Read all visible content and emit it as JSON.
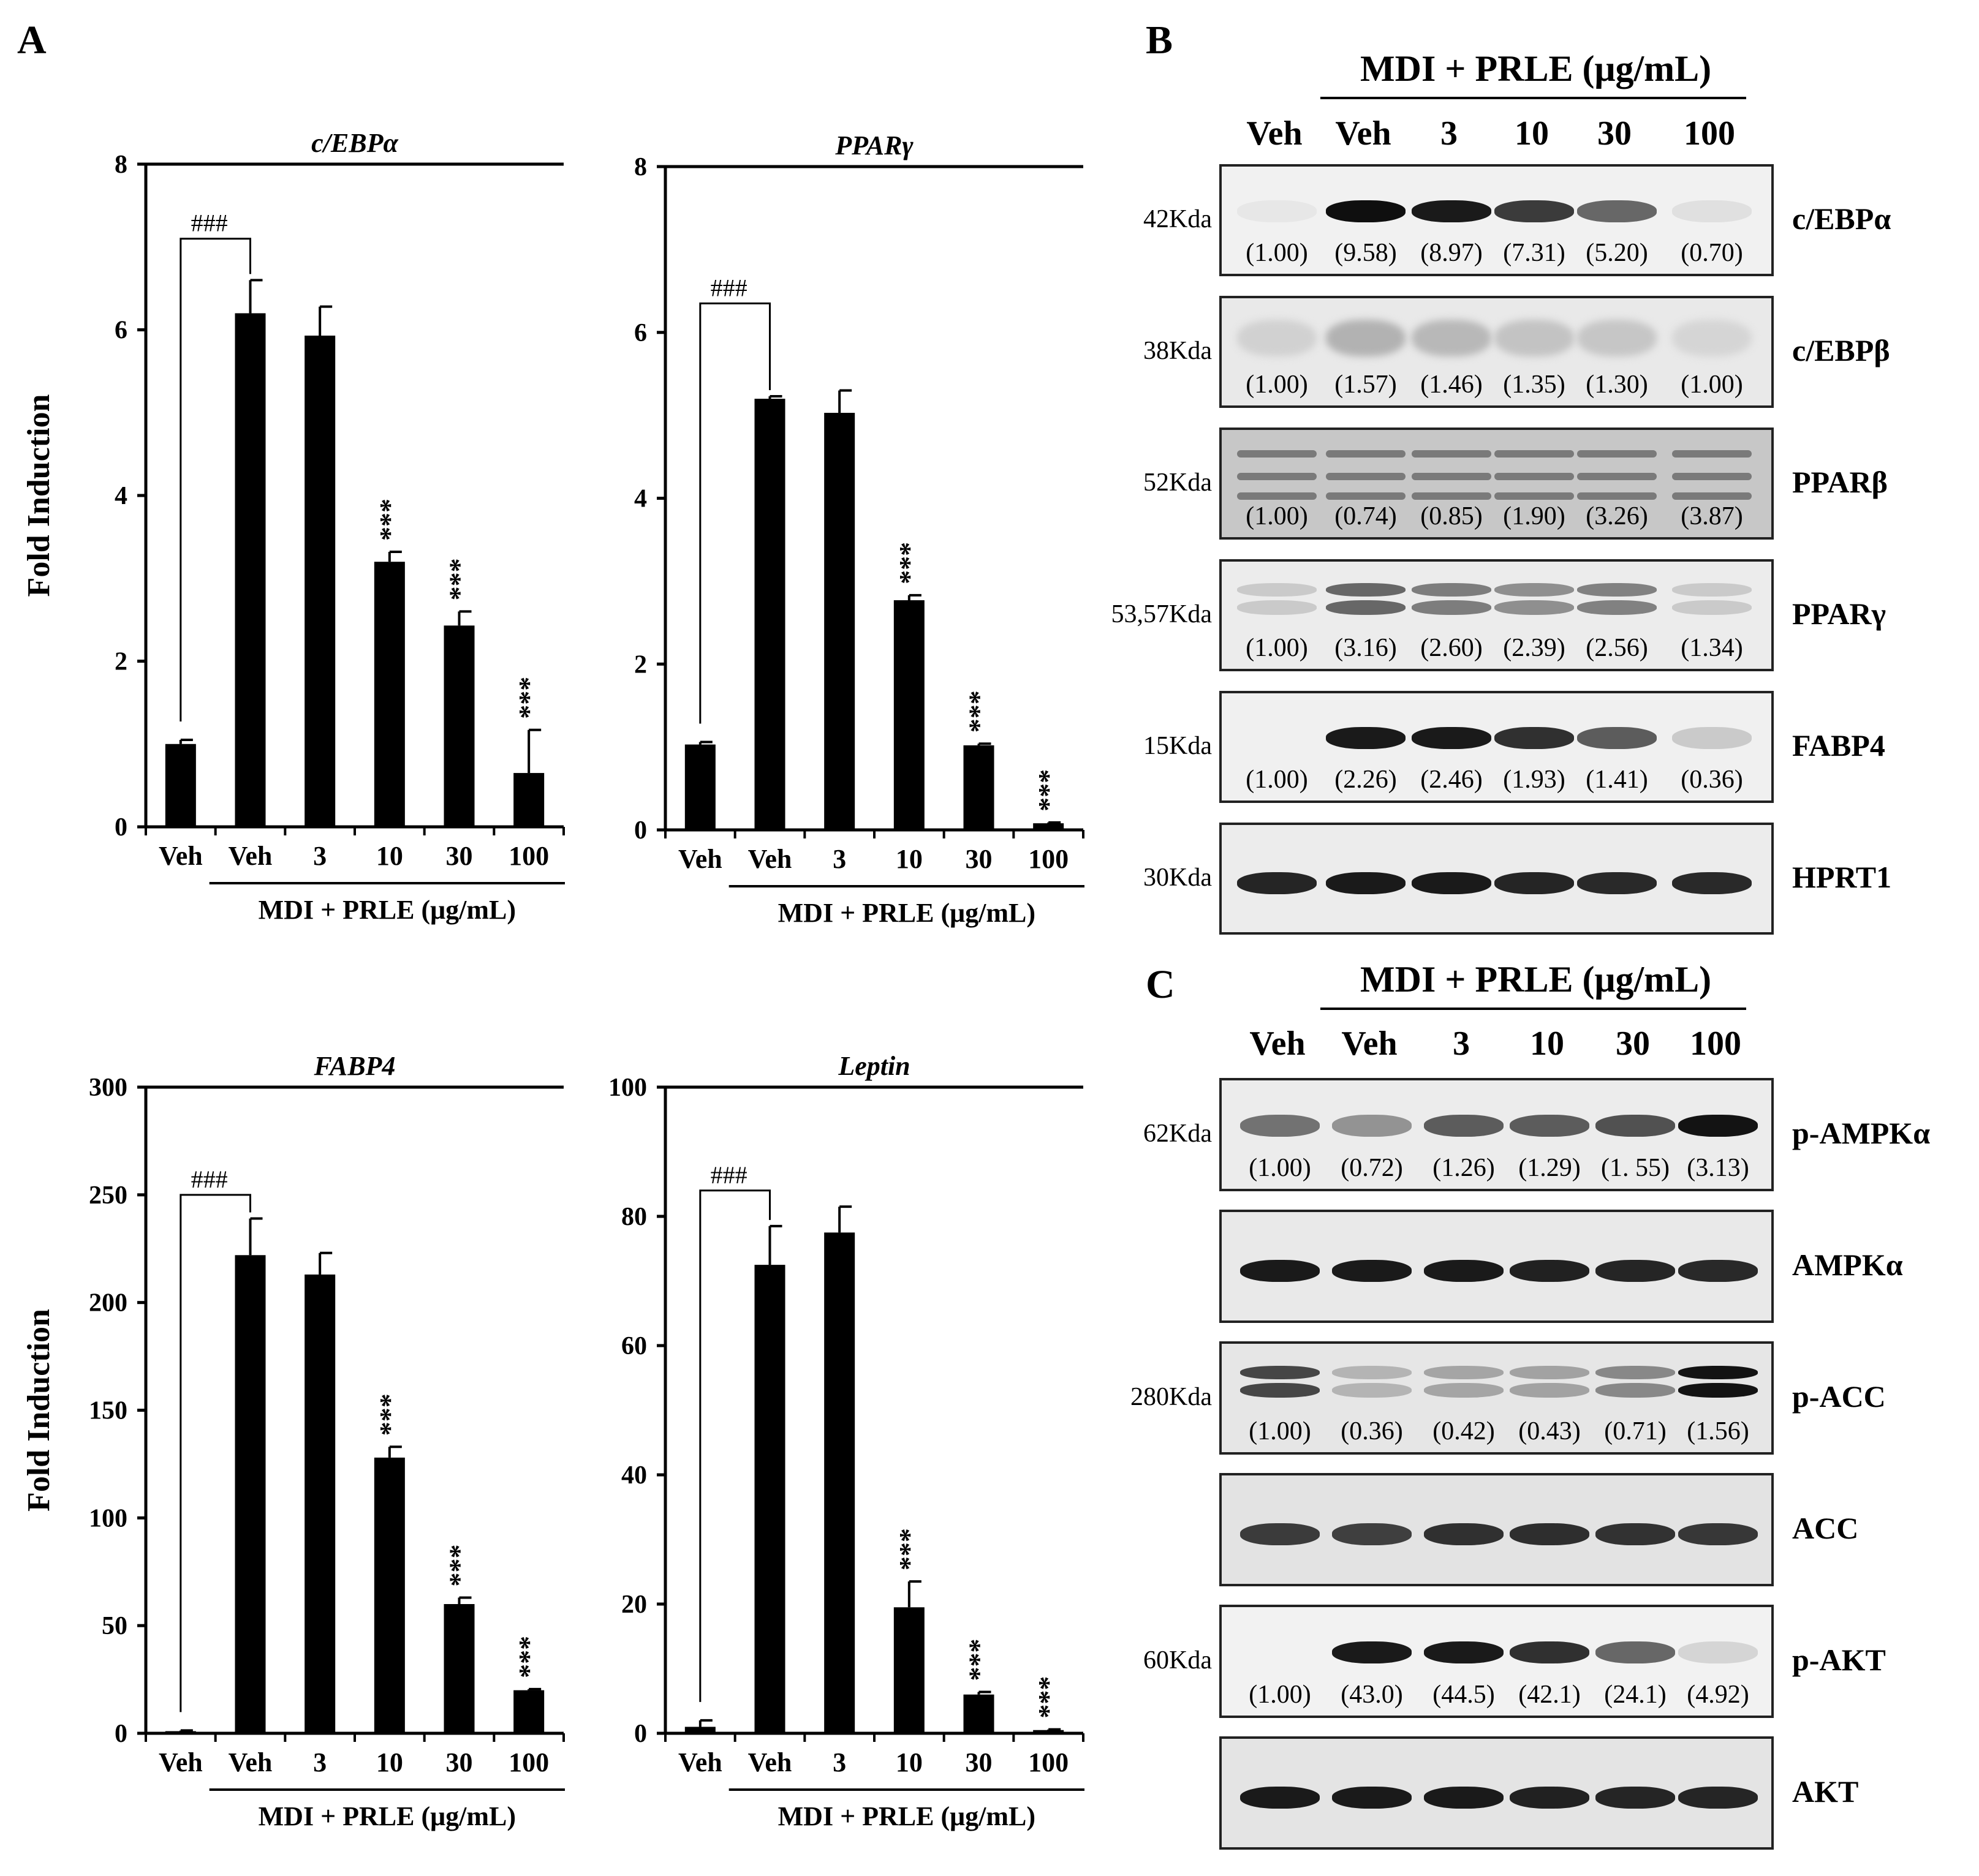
{
  "panel_letters": {
    "a": "A",
    "b": "B",
    "c": "C"
  },
  "chart_data": [
    {
      "type": "bar",
      "title": "c/EBPα",
      "ylabel": "Fold Induction",
      "ylim": [
        0,
        8
      ],
      "yticks": [
        0,
        2,
        4,
        6,
        8
      ],
      "categories": [
        "Veh",
        "Veh",
        "3",
        "10",
        "30",
        "100"
      ],
      "group_label": "MDI + PRLE (μg/mL)",
      "values": [
        1.0,
        6.2,
        5.93,
        3.2,
        2.43,
        0.65
      ],
      "errors": [
        0.05,
        0.4,
        0.35,
        0.12,
        0.17,
        0.52
      ],
      "significance": [
        "",
        "",
        "",
        "***",
        "***",
        "***"
      ],
      "bracket_label": "###"
    },
    {
      "type": "bar",
      "title": "PPARγ",
      "ylabel": "",
      "ylim": [
        0,
        8
      ],
      "yticks": [
        0,
        2,
        4,
        6,
        8
      ],
      "categories": [
        "Veh",
        "Veh",
        "3",
        "10",
        "30",
        "100"
      ],
      "group_label": "MDI + PRLE (μg/mL)",
      "values": [
        1.03,
        5.2,
        5.03,
        2.77,
        1.02,
        0.08
      ],
      "errors": [
        0.03,
        0.03,
        0.27,
        0.06,
        0.02,
        0.01
      ],
      "significance": [
        "",
        "",
        "",
        "***",
        "***",
        "***"
      ],
      "bracket_label": "###"
    },
    {
      "type": "bar",
      "title": "FABP4",
      "ylabel": "Fold Induction",
      "ylim": [
        0,
        300
      ],
      "yticks": [
        0,
        50,
        100,
        150,
        200,
        250,
        300
      ],
      "categories": [
        "Veh",
        "Veh",
        "3",
        "10",
        "30",
        "100"
      ],
      "group_label": "MDI + PRLE (μg/mL)",
      "values": [
        1.0,
        222,
        213,
        128,
        60,
        20
      ],
      "errors": [
        0.3,
        17,
        10,
        5,
        3,
        0.5
      ],
      "significance": [
        "",
        "",
        "",
        "***",
        "***",
        "***"
      ],
      "bracket_label": "###"
    },
    {
      "type": "bar",
      "title": "Leptin",
      "ylabel": "",
      "ylim": [
        0,
        100
      ],
      "yticks": [
        0,
        20,
        40,
        60,
        80,
        100
      ],
      "categories": [
        "Veh",
        "Veh",
        "3",
        "10",
        "30",
        "100"
      ],
      "group_label": "MDI + PRLE (μg/mL)",
      "values": [
        1.0,
        72.5,
        77.5,
        19.5,
        6.0,
        0.5
      ],
      "errors": [
        1.0,
        6,
        4,
        4,
        0.4,
        0.1
      ],
      "significance": [
        "",
        "",
        "",
        "***",
        "***",
        "***"
      ],
      "bracket_label": "###"
    }
  ],
  "blots_b": {
    "header": "MDI + PRLE (μg/mL)",
    "lanes": [
      "Veh",
      "Veh",
      "3",
      "10",
      "30",
      "100"
    ],
    "rows": [
      {
        "mw": "42Kda",
        "protein": "c/EBPα",
        "quant": [
          "(1.00)",
          "(9.58)",
          "(8.97)",
          "(7.31)",
          "(5.20)",
          "(0.70)"
        ],
        "intensity": [
          0.02,
          1.0,
          0.95,
          0.8,
          0.6,
          0.05
        ],
        "bg": "#f1f1f1",
        "smear": false
      },
      {
        "mw": "38Kda",
        "protein": "c/EBPβ",
        "quant": [
          "(1.00)",
          "(1.57)",
          "(1.46)",
          "(1.35)",
          "(1.30)",
          "(1.00)"
        ],
        "intensity": [
          0.12,
          0.26,
          0.23,
          0.18,
          0.17,
          0.1
        ],
        "bg": "#e9e9e9",
        "smear": true
      },
      {
        "mw": "52Kda",
        "protein": "PPARβ",
        "quant": [
          "(1.00)",
          "(0.74)",
          "(0.85)",
          "(1.90)",
          "(3.26)",
          "(3.87)"
        ],
        "intensity": [
          0.5,
          0.5,
          0.5,
          0.5,
          0.5,
          0.5
        ],
        "bg": "#c7c7c7",
        "smear": false
      },
      {
        "mw": "53,57Kda",
        "protein": "PPARγ",
        "quant": [
          "(1.00)",
          "(3.16)",
          "(2.60)",
          "(2.39)",
          "(2.56)",
          "(1.34)"
        ],
        "intensity": [
          0.15,
          0.6,
          0.5,
          0.42,
          0.48,
          0.15
        ],
        "bg": "#ececec",
        "smear": false
      },
      {
        "mw": "15Kda",
        "protein": "FABP4",
        "quant": [
          "(1.00)",
          "(2.26)",
          "(2.46)",
          "(1.93)",
          "(1.41)",
          "(0.36)"
        ],
        "intensity": [
          0.0,
          0.95,
          0.95,
          0.85,
          0.65,
          0.15
        ],
        "bg": "#f0f0f0",
        "smear": false
      },
      {
        "mw": "30Kda",
        "protein": "HPRT1",
        "quant": [
          "",
          "",
          "",
          "",
          "",
          ""
        ],
        "intensity": [
          0.9,
          0.95,
          0.95,
          0.9,
          0.88,
          0.88
        ],
        "bg": "#ececec",
        "smear": false
      }
    ]
  },
  "blots_c": {
    "header": "MDI + PRLE (μg/mL)",
    "lanes": [
      "Veh",
      "Veh",
      "3",
      "10",
      "30",
      "100"
    ],
    "rows": [
      {
        "mw": "62Kda",
        "protein": "p-AMPKα",
        "quant": [
          "(1.00)",
          "(0.72)",
          "(1.26)",
          "(1.29)",
          "(1. 55)",
          "(3.13)"
        ],
        "intensity": [
          0.55,
          0.4,
          0.65,
          0.65,
          0.7,
          0.98
        ],
        "bg": "#ececec",
        "smear": false
      },
      {
        "mw": "",
        "protein": "AMPKα",
        "quant": [
          "",
          "",
          "",
          "",
          "",
          ""
        ],
        "intensity": [
          0.95,
          0.95,
          0.95,
          0.92,
          0.9,
          0.88
        ],
        "bg": "#e9e9e9",
        "smear": false
      },
      {
        "mw": "280Kda",
        "protein": "p-ACC",
        "quant": [
          "(1.00)",
          "(0.36)",
          "(0.42)",
          "(0.43)",
          "(0.71)",
          "(1.56)"
        ],
        "intensity": [
          0.75,
          0.25,
          0.32,
          0.33,
          0.45,
          0.98
        ],
        "bg": "#e6e6e6",
        "smear": false
      },
      {
        "mw": "",
        "protein": "ACC",
        "quant": [
          "",
          "",
          "",
          "",
          "",
          ""
        ],
        "intensity": [
          0.8,
          0.78,
          0.85,
          0.86,
          0.84,
          0.82
        ],
        "bg": "#e3e3e3",
        "smear": false
      },
      {
        "mw": "60Kda",
        "protein": "p-AKT",
        "quant": [
          "(1.00)",
          "(43.0)",
          "(44.5)",
          "(42.1)",
          "(24.1)",
          "(4.92)"
        ],
        "intensity": [
          0.0,
          0.95,
          0.95,
          0.85,
          0.6,
          0.1
        ],
        "bg": "#f2f2f2",
        "smear": false
      },
      {
        "mw": "",
        "protein": "AKT",
        "quant": [
          "",
          "",
          "",
          "",
          "",
          ""
        ],
        "intensity": [
          0.95,
          0.95,
          0.95,
          0.92,
          0.9,
          0.9
        ],
        "bg": "#e4e4e4",
        "smear": false
      }
    ]
  }
}
